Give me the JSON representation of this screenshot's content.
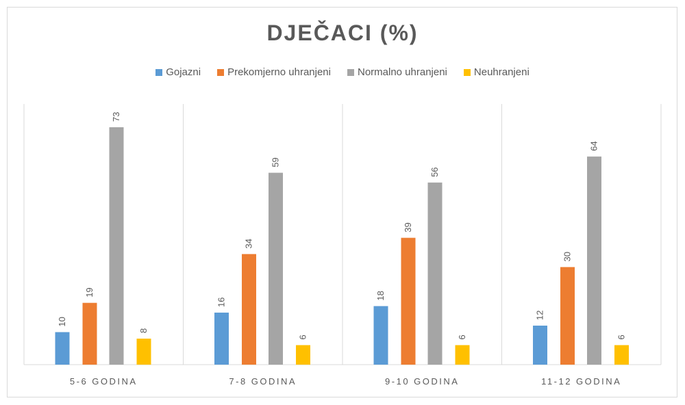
{
  "chart_data": {
    "type": "bar",
    "title": "DJEČACI (%)",
    "categories": [
      "5-6 GODINA",
      "7-8 GODINA",
      "9-10 GODINA",
      "11-12 GODINA"
    ],
    "series": [
      {
        "name": "Gojazni",
        "color": "#5b9bd5",
        "values": [
          10,
          16,
          18,
          12
        ]
      },
      {
        "name": "Prekomjerno uhranjeni",
        "color": "#ed7d31",
        "values": [
          19,
          34,
          39,
          30
        ]
      },
      {
        "name": "Normalno uhranjeni",
        "color": "#a5a5a5",
        "values": [
          73,
          59,
          56,
          64
        ]
      },
      {
        "name": "Neuhranjeni",
        "color": "#ffc000",
        "values": [
          8,
          6,
          6,
          6
        ]
      }
    ],
    "xlabel": "",
    "ylabel": "",
    "ylim": [
      0,
      80
    ],
    "data_labels": true,
    "legend_position": "top",
    "grid": false
  }
}
